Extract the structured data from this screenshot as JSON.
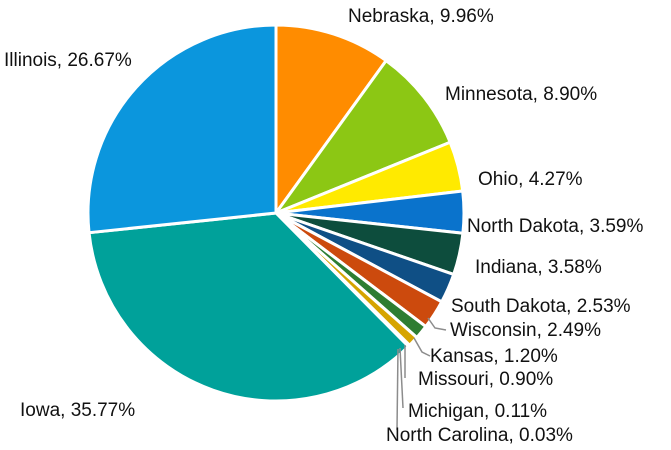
{
  "chart_data": {
    "type": "pie",
    "title": "",
    "slices": [
      {
        "label": "Nebraska",
        "value": 9.96,
        "label_text": "Nebraska, 9.96%",
        "color": "#ff8c00"
      },
      {
        "label": "Minnesota",
        "value": 8.9,
        "label_text": "Minnesota, 8.90%",
        "color": "#8cc714"
      },
      {
        "label": "Ohio",
        "value": 4.27,
        "label_text": "Ohio, 4.27%",
        "color": "#ffea00"
      },
      {
        "label": "North Dakota",
        "value": 3.59,
        "label_text": "North Dakota, 3.59%",
        "color": "#0a73cc"
      },
      {
        "label": "Indiana",
        "value": 3.58,
        "label_text": "Indiana, 3.58%",
        "color": "#0d4d3d"
      },
      {
        "label": "South Dakota",
        "value": 2.53,
        "label_text": "South Dakota, 2.53%",
        "color": "#0f4f85"
      },
      {
        "label": "Wisconsin",
        "value": 2.49,
        "label_text": "Wisconsin, 2.49%",
        "color": "#cc4a0d"
      },
      {
        "label": "Kansas",
        "value": 1.2,
        "label_text": "Kansas, 1.20%",
        "color": "#2e7d32"
      },
      {
        "label": "Missouri",
        "value": 0.9,
        "label_text": "Missouri, 0.90%",
        "color": "#d6a400"
      },
      {
        "label": "Michigan",
        "value": 0.11,
        "label_text": "Michigan, 0.11%",
        "color": "#7fa6cc"
      },
      {
        "label": "North Carolina",
        "value": 0.03,
        "label_text": "North Carolina, 0.03%",
        "color": "#8a8a8a"
      },
      {
        "label": "Iowa",
        "value": 35.77,
        "label_text": "Iowa, 35.77%",
        "color": "#00a19a"
      },
      {
        "label": "Illinois",
        "value": 26.67,
        "label_text": "Illinois, 26.67%",
        "color": "#0b96dd"
      }
    ]
  }
}
